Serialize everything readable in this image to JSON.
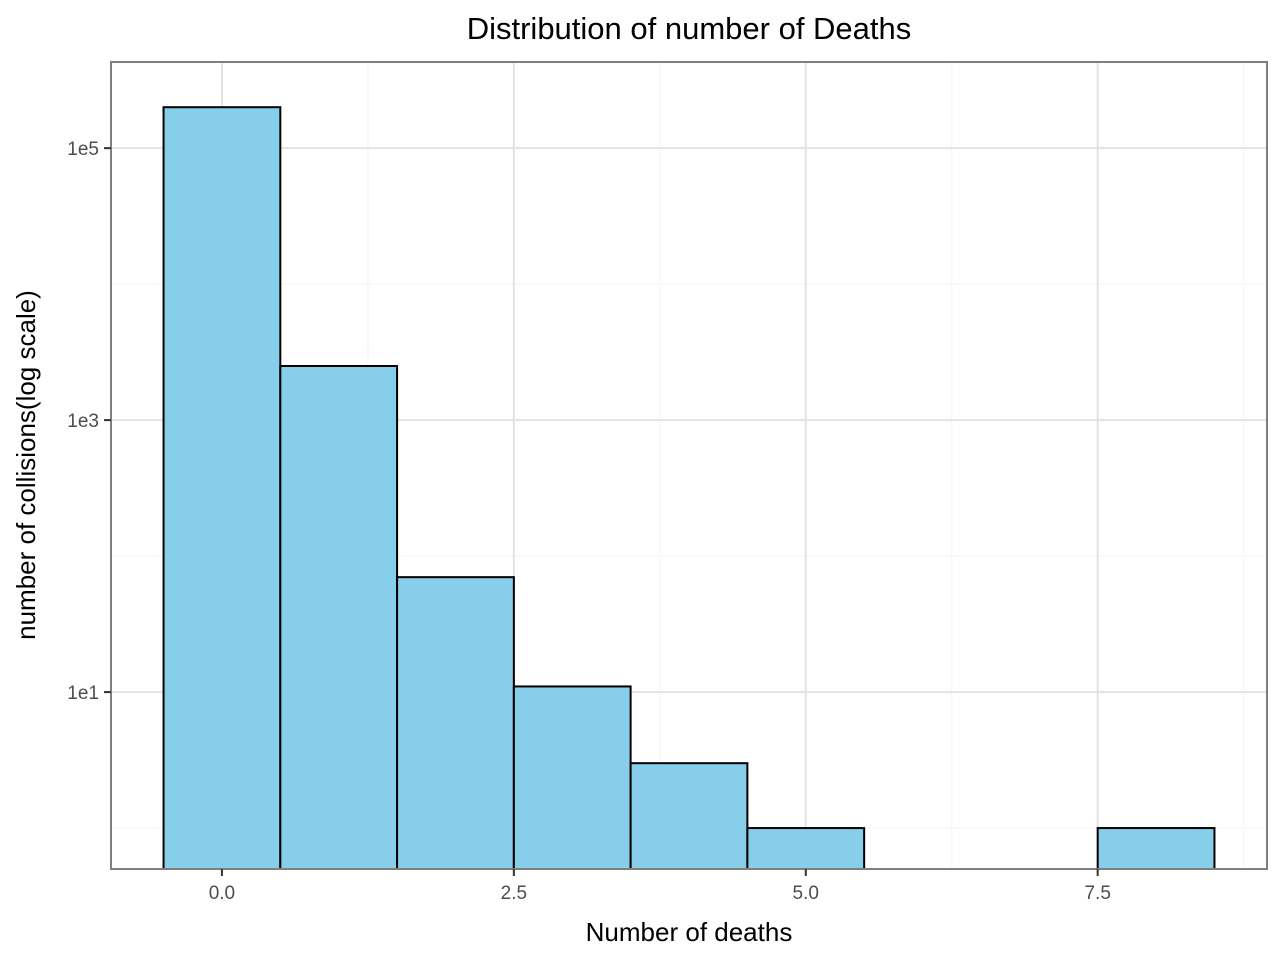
{
  "chart_data": {
    "type": "bar",
    "title": "Distribution of number of Deaths",
    "xlabel": "Number of deaths",
    "ylabel": "number of collisions(log scale)",
    "y_scale": "log10",
    "bin_width": 1,
    "x_ticks": [
      0.0,
      2.5,
      5.0,
      7.5
    ],
    "x_tick_labels": [
      "0.0",
      "2.5",
      "5.0",
      "7.5"
    ],
    "y_ticks": [
      10,
      1000,
      100000
    ],
    "y_tick_labels": [
      "1e1",
      "1e3",
      "1e5"
    ],
    "xlim": [
      -0.95,
      8.95
    ],
    "ylim": [
      0.5,
      430000
    ],
    "bar_fill": "#87CEEB",
    "bar_edge": "#000000",
    "grid": true,
    "bins": [
      {
        "x": 0,
        "count": 200000
      },
      {
        "x": 1,
        "count": 2500
      },
      {
        "x": 2,
        "count": 70
      },
      {
        "x": 3,
        "count": 11
      },
      {
        "x": 4,
        "count": 3
      },
      {
        "x": 5,
        "count": 1
      },
      {
        "x": 8,
        "count": 1
      }
    ]
  }
}
